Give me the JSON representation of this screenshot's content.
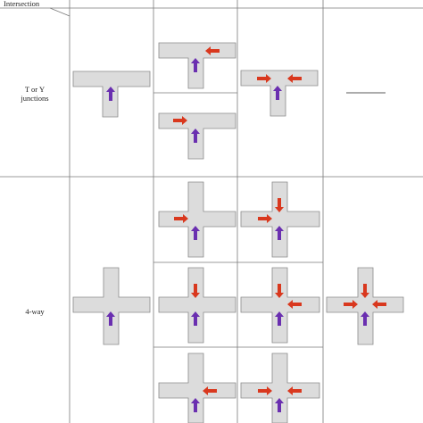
{
  "header": {
    "corner_label": "Intersection"
  },
  "rows": [
    {
      "label_lines": [
        "T or Y",
        "junctions"
      ]
    },
    {
      "label_lines": [
        "4-way"
      ]
    }
  ],
  "cells": {
    "t_col1": [
      "purple-up"
    ],
    "t_col2_a": [
      "purple-up",
      "red-left-right"
    ],
    "t_col2_b": [
      "purple-up",
      "red-right-left"
    ],
    "t_col3": [
      "purple-up",
      "red-right-left",
      "red-left-right"
    ],
    "t_col4": "—",
    "x_col1": [
      "purple-up"
    ],
    "x_col2_a": [
      "purple-up",
      "red-right-left"
    ],
    "x_col2_b": [
      "purple-up",
      "red-down-top"
    ],
    "x_col2_c": [
      "purple-up",
      "red-left-right"
    ],
    "x_col3_a": [
      "purple-up",
      "red-right-left",
      "red-down-top"
    ],
    "x_col3_b": [
      "purple-up",
      "red-down-top",
      "red-left-right"
    ],
    "x_col3_c": [
      "purple-up",
      "red-right-left",
      "red-left-right"
    ],
    "x_col4": [
      "purple-up",
      "red-down-top",
      "red-right-left",
      "red-left-right"
    ]
  },
  "colors": {
    "road_fill": "#dcdcdc",
    "road_edge": "#8a8a8a",
    "subject_arrow": "#6a2fb0",
    "other_arrow": "#d9381e",
    "grid_line": "#7a7a7a"
  }
}
